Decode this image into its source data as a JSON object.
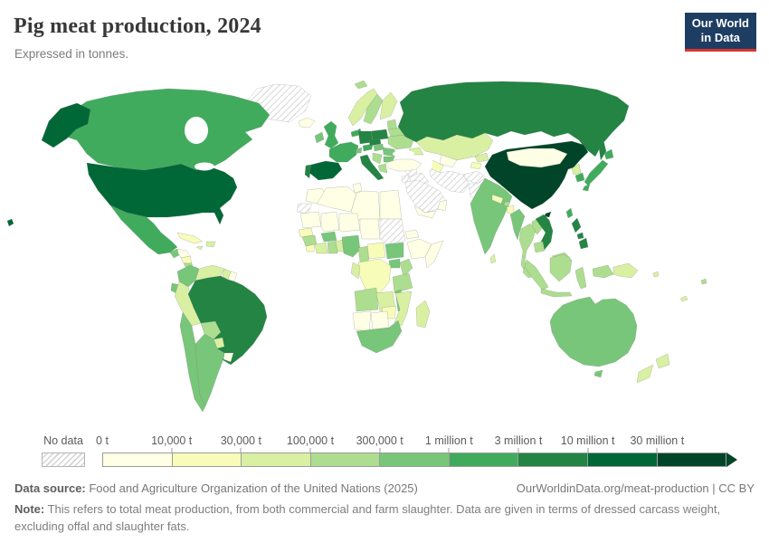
{
  "header": {
    "title": "Pig meat production, 2024",
    "subtitle": "Expressed in tonnes.",
    "logo": {
      "line1": "Our World",
      "line2": "in Data"
    }
  },
  "chart_data": {
    "type": "choropleth",
    "title": "Pig meat production, 2024",
    "unit": "tonnes",
    "legend": {
      "no_data_label": "No data",
      "ticks": [
        "0 t",
        "10,000 t",
        "30,000 t",
        "100,000 t",
        "300,000 t",
        "1 million t",
        "3 million t",
        "10 million t",
        "30 million t"
      ],
      "colors": [
        "#ffffe5",
        "#f7fcb9",
        "#d9f0a3",
        "#addd8e",
        "#78c679",
        "#41ab5d",
        "#238443",
        "#006837",
        "#004529"
      ]
    },
    "countries": {
      "greenland": "nodata",
      "iceland": 0,
      "svalbard": 3,
      "canada": 5,
      "united-states": 7,
      "mexico": 5,
      "guatemala": 4,
      "honduras": 0,
      "nicaragua": 1,
      "costa-rica": 3,
      "panama": 2,
      "cuba": 1,
      "dominican-republic": 2,
      "jamaica": 2,
      "colombia": 4,
      "venezuela": 2,
      "guyana": 2,
      "suriname": 0,
      "ecuador": 4,
      "peru": 2,
      "brazil": 6,
      "bolivia": 3,
      "paraguay": 2,
      "uruguay": 0,
      "chile": 4,
      "argentina": 4,
      "united-kingdom": 5,
      "ireland": 4,
      "norway": 2,
      "sweden": 3,
      "finland": 2,
      "denmark": 5,
      "baltics": 3,
      "belarus": 3,
      "poland": 6,
      "germany": 6,
      "netherlands": 5,
      "france": 5,
      "portugal": 6,
      "spain": 7,
      "italy": 6,
      "switzerland": 4,
      "austria": 5,
      "czechia": 6,
      "hungary": 4,
      "ukraine": 3,
      "romania": 4,
      "balkans": 3,
      "greece": 3,
      "bulgaria": 4,
      "russia": 6,
      "kazakhstan": 2,
      "uzbekistan": 0,
      "turkmenistan": 1,
      "kyrgyzstan": 2,
      "tajikistan": 1,
      "caucasus": 2,
      "turkey": 0,
      "syria": "nodata",
      "jordan": "nodata",
      "iraq": "nodata",
      "iran": "nodata",
      "afghanistan": "nodata",
      "pakistan": "nodata",
      "saudi-arabia": "nodata",
      "yemen": 0,
      "oman": 0,
      "morocco": 0,
      "western-sahara": "nodata",
      "algeria": 0,
      "tunisia": 0,
      "libya": 0,
      "egypt": 0,
      "mauritania": 0,
      "mali": 0,
      "niger": 0,
      "chad": 0,
      "sudan": "nodata",
      "eritrea": 0,
      "ethiopia": 0,
      "somalia": 0,
      "senegal": 1,
      "guinea": 3,
      "sierra-leone": 1,
      "ivory-coast": 2,
      "ghana": 3,
      "burkina-faso": 4,
      "togo-benin": 2,
      "nigeria": 4,
      "cameroon": 3,
      "central-african-republic": 1,
      "south-sudan": 4,
      "uganda": 4,
      "kenya": 3,
      "drc": 1,
      "congo": 2,
      "tanzania": 3,
      "angola": 3,
      "zambia": 2,
      "malawi": 4,
      "mozambique": 2,
      "zimbabwe": 1,
      "madagascar": 2,
      "namibia": 0,
      "botswana": 0,
      "south-africa": 4,
      "india": 4,
      "nepal": 1,
      "bhutan": 3,
      "bangladesh": 1,
      "sri-lanka": 2,
      "china": 8,
      "mongolia": 0,
      "taiwan": 5,
      "north-korea": 2,
      "south-korea": 5,
      "japan": 5,
      "myanmar": 4,
      "laos": 3,
      "vietnam": 6,
      "thailand": 3,
      "cambodia": 3,
      "malaysia": 3,
      "indonesia": 3,
      "philippines": 6,
      "papua-new-guinea": 2,
      "australia": 4,
      "new-zealand": 2,
      "fiji": 3,
      "new-caledonia": 2,
      "solomon-islands": 2
    }
  },
  "footer": {
    "source_label": "Data source:",
    "source_text": " Food and Agriculture Organization of the United Nations (2025)",
    "rights": "OurWorldinData.org/meat-production | CC BY",
    "note_label": "Note:",
    "note_text": " This refers to total meat production, from both commercial and farm slaughter. Data are given in terms of dressed carcass weight, excluding offal and slaughter fats."
  }
}
